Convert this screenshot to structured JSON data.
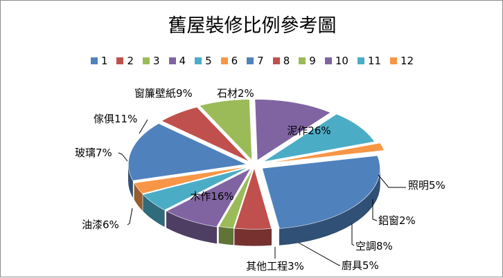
{
  "chart_data": {
    "type": "pie",
    "title": "舊屋裝修比例參考圖",
    "legend_position": "top",
    "legend": [
      "1",
      "2",
      "3",
      "4",
      "5",
      "6",
      "7",
      "8",
      "9",
      "10",
      "11",
      "12"
    ],
    "slices": [
      {
        "label": "泥作26%",
        "value": 26,
        "color": "#4f81bd"
      },
      {
        "label": "照明5%",
        "value": 5,
        "color": "#c0504d"
      },
      {
        "label": "鋁窗2%",
        "value": 2,
        "color": "#9bbb59"
      },
      {
        "label": "空調8%",
        "value": 8,
        "color": "#8064a2"
      },
      {
        "label": "廚具5%",
        "value": 5,
        "color": "#4bacc6"
      },
      {
        "label": "其他工程3%",
        "value": 3,
        "color": "#f79646"
      },
      {
        "label": "木作16%",
        "value": 16,
        "color": "#4f81bd"
      },
      {
        "label": "油漆6%",
        "value": 6,
        "color": "#c0504d"
      },
      {
        "label": "玻璃7%",
        "value": 7,
        "color": "#9bbb59"
      },
      {
        "label": "傢俱11%",
        "value": 11,
        "color": "#8064a2"
      },
      {
        "label": "窗簾壁紙9%",
        "value": 9,
        "color": "#4bacc6"
      },
      {
        "label": "石材2%",
        "value": 2,
        "color": "#f79646"
      }
    ]
  }
}
